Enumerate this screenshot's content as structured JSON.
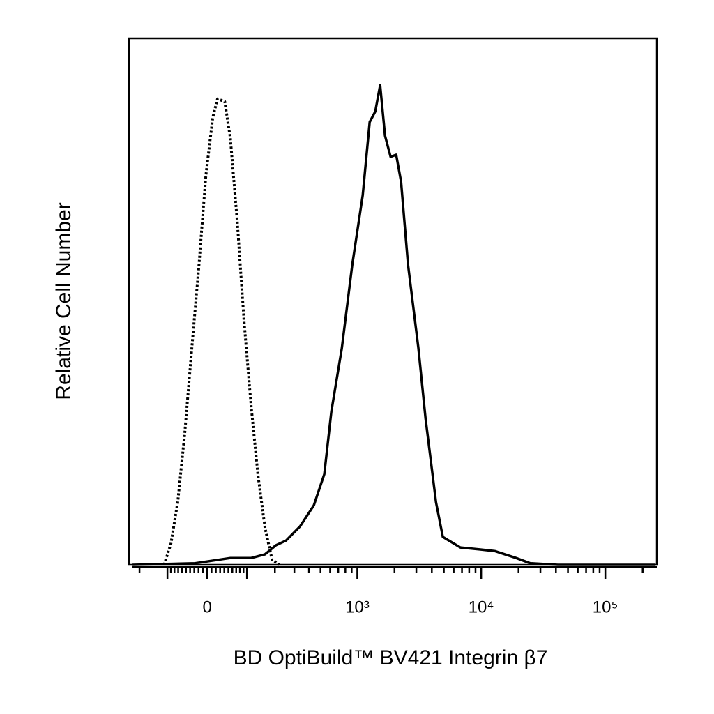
{
  "chart_data": {
    "type": "histogram-overlay",
    "xlabel": "BD OptiBuild™ BV421 Integrin β7",
    "ylabel": "Relative Cell Number",
    "xscale": "biexponential",
    "xlim": [
      -250,
      260000
    ],
    "ylim": [
      0,
      100
    ],
    "xticks": [
      0,
      {
        "value": 1000,
        "label": "10³"
      },
      {
        "value": 10000,
        "label": "10⁴"
      },
      {
        "value": 100000,
        "label": "10⁵"
      }
    ],
    "xminorticks": [
      -200,
      -100,
      -90,
      -80,
      -70,
      -60,
      -50,
      -40,
      -30,
      -20,
      -10,
      10,
      20,
      30,
      40,
      50,
      60,
      70,
      80,
      90,
      100,
      200,
      300,
      400,
      500,
      600,
      700,
      800,
      900,
      2000,
      3000,
      4000,
      5000,
      6000,
      7000,
      8000,
      9000,
      20000,
      30000,
      40000,
      50000,
      60000,
      70000,
      80000,
      90000,
      200000
    ],
    "series": [
      {
        "color": "#000000",
        "dash": "dotted",
        "x": [
          -110,
          -90,
          -71,
          -53,
          -36,
          -19,
          -3,
          13,
          24,
          41,
          55,
          73,
          92,
          113,
          135,
          160,
          188,
          220
        ],
        "values": [
          0,
          4,
          12,
          25,
          41,
          57,
          74,
          85,
          88.5,
          88,
          81,
          65,
          46,
          30,
          17,
          7,
          1,
          0
        ]
      },
      {
        "color": "#000000",
        "dash": "solid",
        "x": [
          -232,
          -28,
          5,
          55,
          113,
          160,
          204,
          253,
          336,
          440,
          537,
          614,
          748,
          910,
          1107,
          1260,
          1399,
          1531,
          1678,
          1860,
          2065,
          2260,
          2572,
          3120,
          3560,
          4320,
          4910,
          6790,
          10000,
          12970,
          19100,
          24800,
          41500,
          254000
        ],
        "values": [
          0,
          0.3,
          0.7,
          1.3,
          1.3,
          2,
          3.7,
          4.6,
          7.3,
          11.3,
          17.2,
          29.1,
          41.1,
          57,
          70.2,
          84.1,
          86.1,
          91.1,
          81.5,
          77.5,
          77.9,
          72.8,
          57,
          41.1,
          27.8,
          11.9,
          5.3,
          3.3,
          2.9,
          2.6,
          1.3,
          0.3,
          0,
          0
        ]
      }
    ]
  }
}
